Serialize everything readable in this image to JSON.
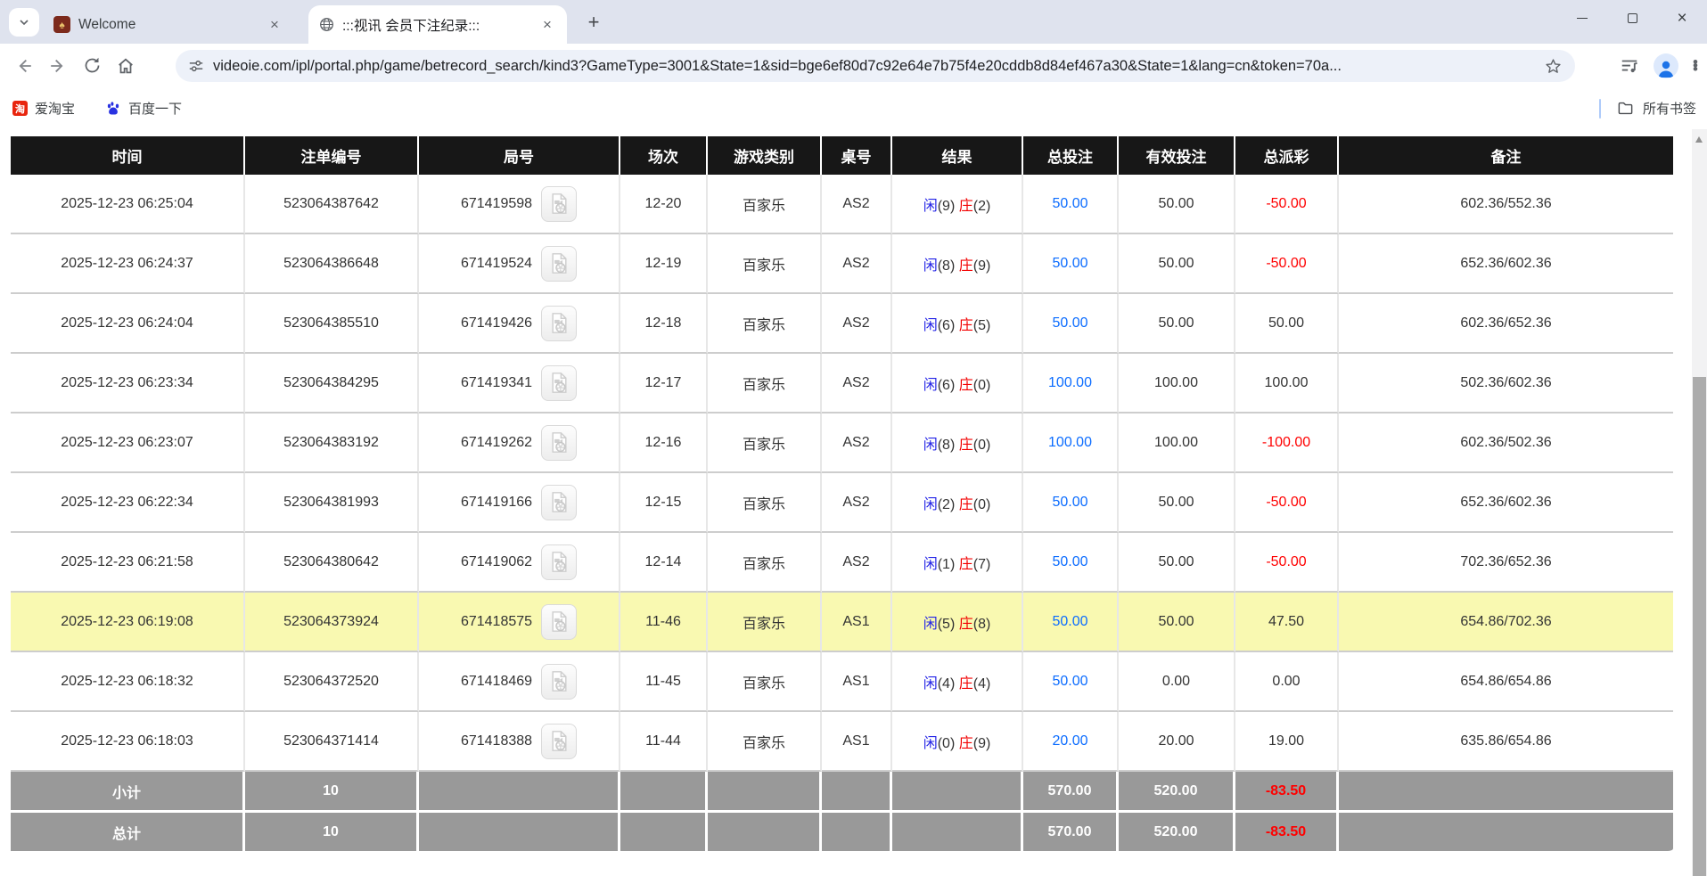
{
  "browser": {
    "tabs": [
      {
        "title": "Welcome"
      },
      {
        "title": ":::视讯 会员下注纪录:::"
      }
    ],
    "new_tab_label": "+",
    "url": "videoie.com/ipl/portal.php/game/betrecord_search/kind3?GameType=3001&State=1&sid=bge6ef80d7c92e64e7b75f4e20cddb8d84ef467a30&State=1&lang=cn&token=70a...",
    "bookmarks": [
      {
        "label": "爱淘宝",
        "badge": "淘"
      },
      {
        "label": "百度一下"
      }
    ],
    "all_bookmarks_label": "所有书签"
  },
  "table": {
    "headers": [
      "时间",
      "注单编号",
      "局号",
      "场次",
      "游戏类别",
      "桌号",
      "结果",
      "总投注",
      "有效投注",
      "总派彩",
      "备注"
    ],
    "result_labels": {
      "xian": "闲",
      "zhuang": "庄"
    },
    "rows": [
      {
        "time": "2025-12-23 06:25:04",
        "bet_id": "523064387642",
        "round_no": "671419598",
        "session": "12-20",
        "game_type": "百家乐",
        "table_no": "AS2",
        "xian": "9",
        "zhuang": "2",
        "total_bet": "50.00",
        "valid_bet": "50.00",
        "payout": "-50.00",
        "remark": "602.36/552.36",
        "highlighted": false
      },
      {
        "time": "2025-12-23 06:24:37",
        "bet_id": "523064386648",
        "round_no": "671419524",
        "session": "12-19",
        "game_type": "百家乐",
        "table_no": "AS2",
        "xian": "8",
        "zhuang": "9",
        "total_bet": "50.00",
        "valid_bet": "50.00",
        "payout": "-50.00",
        "remark": "652.36/602.36",
        "highlighted": false
      },
      {
        "time": "2025-12-23 06:24:04",
        "bet_id": "523064385510",
        "round_no": "671419426",
        "session": "12-18",
        "game_type": "百家乐",
        "table_no": "AS2",
        "xian": "6",
        "zhuang": "5",
        "total_bet": "50.00",
        "valid_bet": "50.00",
        "payout": "50.00",
        "remark": "602.36/652.36",
        "highlighted": false
      },
      {
        "time": "2025-12-23 06:23:34",
        "bet_id": "523064384295",
        "round_no": "671419341",
        "session": "12-17",
        "game_type": "百家乐",
        "table_no": "AS2",
        "xian": "6",
        "zhuang": "0",
        "total_bet": "100.00",
        "valid_bet": "100.00",
        "payout": "100.00",
        "remark": "502.36/602.36",
        "highlighted": false
      },
      {
        "time": "2025-12-23 06:23:07",
        "bet_id": "523064383192",
        "round_no": "671419262",
        "session": "12-16",
        "game_type": "百家乐",
        "table_no": "AS2",
        "xian": "8",
        "zhuang": "0",
        "total_bet": "100.00",
        "valid_bet": "100.00",
        "payout": "-100.00",
        "remark": "602.36/502.36",
        "highlighted": false
      },
      {
        "time": "2025-12-23 06:22:34",
        "bet_id": "523064381993",
        "round_no": "671419166",
        "session": "12-15",
        "game_type": "百家乐",
        "table_no": "AS2",
        "xian": "2",
        "zhuang": "0",
        "total_bet": "50.00",
        "valid_bet": "50.00",
        "payout": "-50.00",
        "remark": "652.36/602.36",
        "highlighted": false
      },
      {
        "time": "2025-12-23 06:21:58",
        "bet_id": "523064380642",
        "round_no": "671419062",
        "session": "12-14",
        "game_type": "百家乐",
        "table_no": "AS2",
        "xian": "1",
        "zhuang": "7",
        "total_bet": "50.00",
        "valid_bet": "50.00",
        "payout": "-50.00",
        "remark": "702.36/652.36",
        "highlighted": false
      },
      {
        "time": "2025-12-23 06:19:08",
        "bet_id": "523064373924",
        "round_no": "671418575",
        "session": "11-46",
        "game_type": "百家乐",
        "table_no": "AS1",
        "xian": "5",
        "zhuang": "8",
        "total_bet": "50.00",
        "valid_bet": "50.00",
        "payout": "47.50",
        "remark": "654.86/702.36",
        "highlighted": true
      },
      {
        "time": "2025-12-23 06:18:32",
        "bet_id": "523064372520",
        "round_no": "671418469",
        "session": "11-45",
        "game_type": "百家乐",
        "table_no": "AS1",
        "xian": "4",
        "zhuang": "4",
        "total_bet": "50.00",
        "valid_bet": "0.00",
        "payout": "0.00",
        "remark": "654.86/654.86",
        "highlighted": false
      },
      {
        "time": "2025-12-23 06:18:03",
        "bet_id": "523064371414",
        "round_no": "671418388",
        "session": "11-44",
        "game_type": "百家乐",
        "table_no": "AS1",
        "xian": "0",
        "zhuang": "9",
        "total_bet": "20.00",
        "valid_bet": "20.00",
        "payout": "19.00",
        "remark": "635.86/654.86",
        "highlighted": false
      }
    ],
    "footer": [
      {
        "label": "小计",
        "count": "10",
        "total_bet": "570.00",
        "valid_bet": "520.00",
        "payout": "-83.50"
      },
      {
        "label": "总计",
        "count": "10",
        "total_bet": "570.00",
        "valid_bet": "520.00",
        "payout": "-83.50"
      }
    ]
  },
  "colors": {
    "xian_blue": "#2323e6",
    "zhuang_red": "#f20000",
    "bet_blue": "#0b6cff",
    "negative_red": "#ff0000",
    "highlight_yellow": "#f9f9b1",
    "footer_gray": "#999999",
    "header_black": "#171717"
  },
  "icons": {
    "tab-list-icon": "chevron-down",
    "globe-icon": "globe",
    "close-icon": "x",
    "new-tab-icon": "+",
    "back-icon": "arrow-left",
    "forward-icon": "arrow-right",
    "reload-icon": "circular-arrow",
    "home-icon": "house",
    "tune-icon": "sliders",
    "star-icon": "star-outline",
    "media-controls-icon": "list-with-note",
    "profile-icon": "person",
    "menu-icon": "three-dots",
    "taobao-icon": "淘",
    "baidu-icon": "paw",
    "folder-icon": "folder",
    "video-replay-icon": "film-document",
    "scroll-up-icon": "triangle-up"
  }
}
